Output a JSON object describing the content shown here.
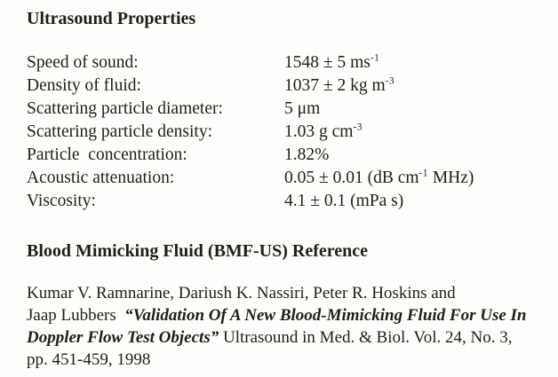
{
  "page": {
    "background_color": "#fdfdfc",
    "text_color": "#221e18"
  },
  "properties_section": {
    "title": "Ultrasound Properties",
    "rows": [
      {
        "label": "Speed of sound:",
        "value_pre": "1548 ± 5 ms",
        "value_sup": "-1",
        "value_post": ""
      },
      {
        "label": "Density of fluid:",
        "value_pre": "1037 ± 2 kg m",
        "value_sup": "-3",
        "value_post": ""
      },
      {
        "label": "Scattering particle diameter:",
        "value_pre": "5 μm",
        "value_sup": "",
        "value_post": ""
      },
      {
        "label": "Scattering particle density:",
        "value_pre": "1.03 g cm",
        "value_sup": "-3",
        "value_post": ""
      },
      {
        "label": "Particle  concentration:",
        "value_pre": "1.82%",
        "value_sup": "",
        "value_post": ""
      },
      {
        "label": "Acoustic attenuation:",
        "value_pre": "0.05 ± 0.01 (dB cm",
        "value_sup": "-1",
        "value_post": " MHz)"
      },
      {
        "label": "Viscosity:",
        "value_pre": "4.1 ± 0.1 (mPa s)",
        "value_sup": "",
        "value_post": ""
      }
    ]
  },
  "reference_section": {
    "title": "Blood Mimicking Fluid (BMF-US) Reference",
    "citation": {
      "line1": "Kumar V. Ramnarine, Dariush K. Nassiri, Peter R. Hoskins and",
      "line2_normal": "Jaap Lubbers  ",
      "line2_italic": "“Validation Of A New Blood-Mimicking Fluid For Use In",
      "line3_italic": "Doppler Flow Test Objects”",
      "line3_normal": " Ultrasound in Med. & Biol. Vol. 24, No. 3,",
      "line4": "pp. 451-459, 1998"
    }
  }
}
